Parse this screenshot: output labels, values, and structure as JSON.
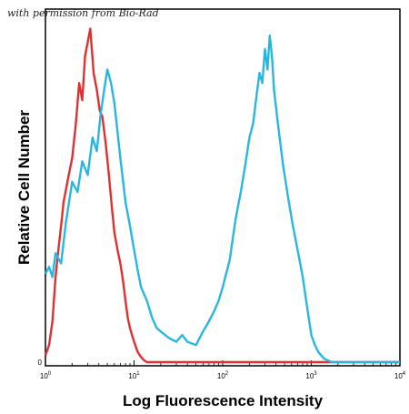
{
  "credit_text": "with permission from Bio-Rad",
  "chart_data": {
    "type": "line",
    "title": "",
    "xlabel": "Log Fluorescence Intensity",
    "ylabel": "Relative Cell Number",
    "x_scale": "log",
    "xlim": [
      1,
      10000
    ],
    "ylim": [
      0,
      1
    ],
    "x_ticks": [
      {
        "value": 1,
        "base": "10",
        "exp": "0"
      },
      {
        "value": 10,
        "base": "10",
        "exp": "1"
      },
      {
        "value": 100,
        "base": "10",
        "exp": "2"
      },
      {
        "value": 1000,
        "base": "10",
        "exp": "3"
      },
      {
        "value": 10000,
        "base": "10",
        "exp": "4"
      }
    ],
    "y_ticks": [
      {
        "value": 0,
        "label": "0"
      }
    ],
    "grid": false,
    "series": [
      {
        "color": "#e03030",
        "x": [
          1.0,
          1.1,
          1.2,
          1.3,
          1.4,
          1.5,
          1.6,
          1.8,
          2.0,
          2.2,
          2.4,
          2.6,
          2.8,
          3.0,
          3.2,
          3.5,
          3.8,
          4.1,
          4.4,
          4.8,
          5.2,
          5.6,
          6.0,
          6.5,
          7.0,
          7.5,
          8.0,
          8.5,
          9.0,
          10.0,
          11.0,
          12.0,
          13.0,
          14.0,
          15.0,
          20.0,
          30.0,
          50.0,
          100.0,
          1000.0,
          10000.0
        ],
        "y": [
          0.02,
          0.05,
          0.12,
          0.25,
          0.33,
          0.4,
          0.47,
          0.54,
          0.6,
          0.7,
          0.82,
          0.77,
          0.9,
          0.94,
          0.98,
          0.85,
          0.8,
          0.74,
          0.72,
          0.64,
          0.55,
          0.46,
          0.38,
          0.33,
          0.29,
          0.24,
          0.18,
          0.13,
          0.1,
          0.06,
          0.03,
          0.015,
          0.005,
          0.0,
          0.0,
          0.0,
          0.0,
          0.0,
          0.0,
          0.0,
          0.0
        ]
      },
      {
        "color": "#29b6e0",
        "x": [
          1.0,
          1.1,
          1.2,
          1.3,
          1.5,
          1.7,
          2.0,
          2.3,
          2.6,
          3.0,
          3.4,
          3.8,
          4.2,
          4.6,
          5.0,
          5.5,
          6.0,
          7.0,
          8.0,
          9.0,
          10.0,
          11.0,
          12.0,
          14.0,
          16.0,
          18.0,
          20.0,
          25.0,
          30.0,
          35.0,
          40.0,
          50.0,
          60.0,
          70.0,
          80.0,
          90.0,
          100.0,
          120.0,
          140.0,
          160.0,
          180.0,
          200.0,
          220.0,
          240.0,
          260.0,
          280.0,
          300.0,
          320.0,
          340.0,
          360.0,
          380.0,
          420.0,
          480.0,
          550.0,
          620.0,
          700.0,
          800.0,
          900.0,
          1000.0,
          1100.0,
          1200.0,
          1400.0,
          1700.0,
          2000.0,
          3000.0,
          5000.0,
          10000.0
        ],
        "y": [
          0.26,
          0.28,
          0.25,
          0.32,
          0.29,
          0.41,
          0.53,
          0.5,
          0.59,
          0.55,
          0.66,
          0.62,
          0.73,
          0.8,
          0.86,
          0.82,
          0.76,
          0.6,
          0.47,
          0.4,
          0.33,
          0.27,
          0.22,
          0.18,
          0.13,
          0.1,
          0.09,
          0.07,
          0.06,
          0.08,
          0.06,
          0.05,
          0.09,
          0.12,
          0.15,
          0.18,
          0.22,
          0.3,
          0.42,
          0.5,
          0.58,
          0.66,
          0.7,
          0.78,
          0.85,
          0.82,
          0.92,
          0.86,
          0.96,
          0.9,
          0.8,
          0.7,
          0.58,
          0.48,
          0.4,
          0.33,
          0.25,
          0.16,
          0.08,
          0.05,
          0.03,
          0.01,
          0.0,
          0.0,
          0.0,
          0.0,
          0.0
        ]
      }
    ]
  }
}
